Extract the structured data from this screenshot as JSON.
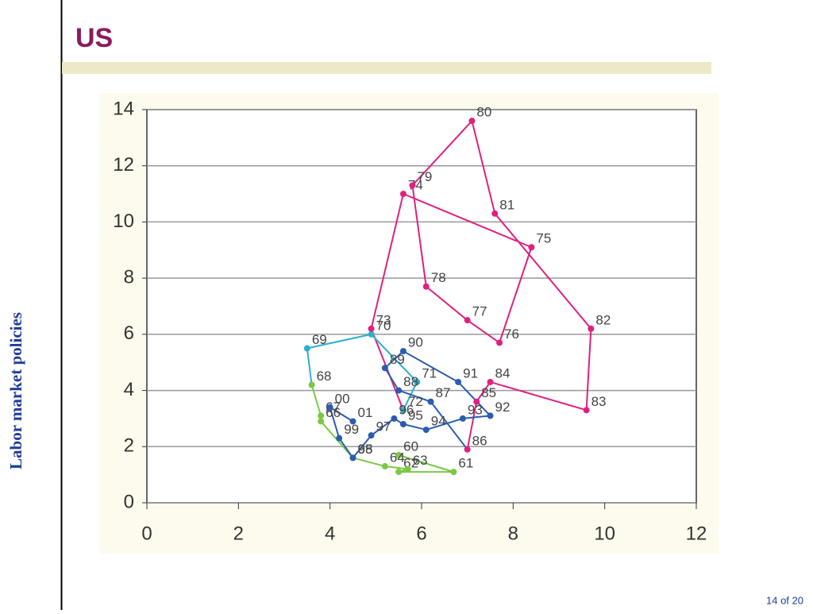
{
  "slide": {
    "title": "US",
    "sidebar": "Labor market policies",
    "page": "14 of 20"
  },
  "chart_data": {
    "type": "connected-scatter",
    "xlim": [
      0,
      12
    ],
    "xticks": [
      0,
      2,
      4,
      6,
      8,
      10,
      12
    ],
    "ylim": [
      0,
      14
    ],
    "yticks": [
      0,
      2,
      4,
      6,
      8,
      10,
      12,
      14
    ],
    "grid": true,
    "series": [
      {
        "color": "#7ac943",
        "labels": [
          "60",
          "61",
          "62",
          "63",
          "64",
          "65",
          "66",
          "67",
          "68"
        ],
        "x": [
          5.5,
          6.7,
          5.5,
          5.7,
          5.2,
          4.5,
          3.8,
          3.8,
          3.6
        ],
        "values": [
          1.7,
          1.1,
          1.1,
          1.2,
          1.3,
          1.6,
          2.9,
          3.1,
          4.2
        ]
      },
      {
        "color": "#2ab0d0",
        "labels": [
          "69",
          "70",
          "71",
          "72"
        ],
        "x": [
          3.5,
          4.9,
          5.9,
          5.6
        ],
        "values": [
          5.5,
          6.0,
          4.3,
          3.3
        ]
      },
      {
        "color": "#e0207f",
        "labels": [
          "73",
          "74",
          "75",
          "76",
          "77",
          "78",
          "79",
          "80",
          "81",
          "82",
          "83",
          "84",
          "85",
          "86"
        ],
        "x": [
          4.9,
          5.6,
          8.4,
          7.7,
          7.0,
          6.1,
          5.8,
          7.1,
          7.6,
          9.7,
          9.6,
          7.5,
          7.2,
          7.0
        ],
        "values": [
          6.2,
          11.0,
          9.1,
          5.7,
          6.5,
          7.7,
          11.3,
          13.6,
          10.3,
          6.2,
          3.3,
          4.3,
          3.6,
          1.9
        ]
      },
      {
        "color": "#2a5cb0",
        "labels": [
          "87",
          "88",
          "89",
          "90",
          "91",
          "92",
          "93",
          "94",
          "95",
          "96",
          "97",
          "98",
          "99",
          "00",
          "01"
        ],
        "x": [
          6.2,
          5.5,
          5.2,
          5.6,
          6.8,
          7.5,
          6.9,
          6.1,
          5.6,
          5.4,
          4.9,
          4.5,
          4.2,
          4.0,
          4.5
        ],
        "values": [
          3.6,
          4.0,
          4.8,
          5.4,
          4.3,
          3.1,
          3.0,
          2.6,
          2.8,
          3.0,
          2.4,
          1.6,
          2.3,
          3.4,
          2.9
        ]
      }
    ]
  }
}
